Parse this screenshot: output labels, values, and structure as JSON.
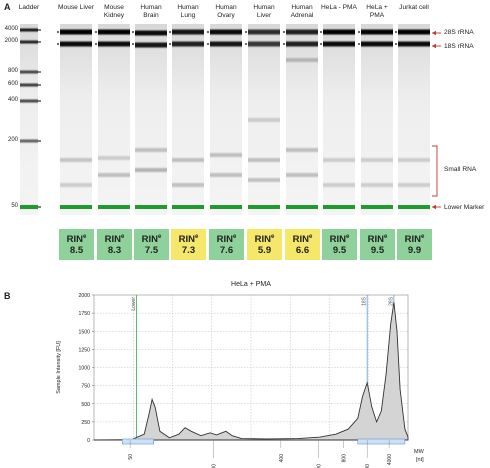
{
  "panel_a_letter": "A",
  "panel_b_letter": "B",
  "gel": {
    "lanes": [
      {
        "label": "Ladder",
        "rin": null
      },
      {
        "label": "Mouse Liver",
        "rin": "8.5",
        "color": "#8ed19a"
      },
      {
        "label": "Mouse Kidney",
        "rin": "8.3",
        "color": "#8ed19a"
      },
      {
        "label": "Human Brain",
        "rin": "7.5",
        "color": "#8ed19a"
      },
      {
        "label": "Human Lung",
        "rin": "7.3",
        "color": "#f4e76a"
      },
      {
        "label": "Human Ovary",
        "rin": "7.6",
        "color": "#8ed19a"
      },
      {
        "label": "Human Liver",
        "rin": "5.9",
        "color": "#f4e76a"
      },
      {
        "label": "Human Adrenal",
        "rin": "6.6",
        "color": "#f4e76a"
      },
      {
        "label": "HeLa - PMA",
        "rin": "9.5",
        "color": "#8ed19a"
      },
      {
        "label": "HeLa + PMA",
        "rin": "9.5",
        "color": "#8ed19a"
      },
      {
        "label": "Jurkat cell",
        "rin": "9.9",
        "color": "#8ed19a"
      }
    ],
    "ladder_sizes": [
      "4000",
      "2000",
      "800",
      "600",
      "400",
      "200",
      "50"
    ],
    "rin_label": "RIN",
    "rin_sup": "e",
    "annotations": {
      "rrna_28s": "28S rRNA",
      "rrna_18s": "18S rRNA",
      "small_rna": "Small RNA",
      "lower_marker": "Lower Marker"
    }
  },
  "chart_data": {
    "type": "area",
    "title": "HeLa + PMA",
    "ylabel": "Sample Intensity [FU]",
    "xlabel": "MW [nt]",
    "ylim": [
      0,
      2000
    ],
    "yticks": [
      0,
      250,
      500,
      750,
      1000,
      1250,
      1500,
      1750,
      2000
    ],
    "x_tick_labels": [
      "50",
      "200",
      "400",
      "600",
      "800",
      "2000",
      "4000"
    ],
    "peak_labels": [
      "Lower",
      "18S",
      "28S"
    ],
    "grid": true,
    "series": [
      {
        "profile": [
          [
            0,
            0
          ],
          [
            0.12,
            5
          ],
          [
            0.16,
            80
          ],
          [
            0.175,
            350
          ],
          [
            0.185,
            560
          ],
          [
            0.195,
            450
          ],
          [
            0.21,
            120
          ],
          [
            0.24,
            30
          ],
          [
            0.27,
            80
          ],
          [
            0.29,
            170
          ],
          [
            0.31,
            120
          ],
          [
            0.34,
            60
          ],
          [
            0.37,
            100
          ],
          [
            0.39,
            70
          ],
          [
            0.42,
            120
          ],
          [
            0.44,
            60
          ],
          [
            0.47,
            20
          ],
          [
            0.55,
            15
          ],
          [
            0.65,
            20
          ],
          [
            0.72,
            40
          ],
          [
            0.77,
            80
          ],
          [
            0.81,
            150
          ],
          [
            0.84,
            300
          ],
          [
            0.855,
            600
          ],
          [
            0.87,
            790
          ],
          [
            0.885,
            450
          ],
          [
            0.9,
            250
          ],
          [
            0.915,
            400
          ],
          [
            0.93,
            900
          ],
          [
            0.945,
            1600
          ],
          [
            0.955,
            1900
          ],
          [
            0.965,
            1500
          ],
          [
            0.975,
            700
          ],
          [
            0.99,
            150
          ],
          [
            1,
            40
          ]
        ]
      }
    ]
  }
}
